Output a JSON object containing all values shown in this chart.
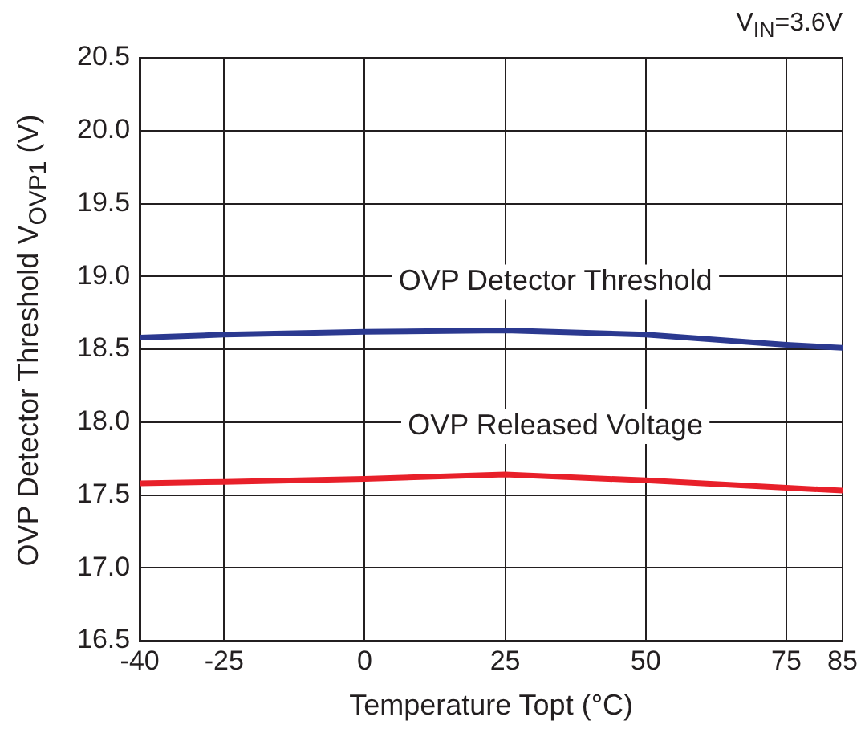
{
  "chart_data": {
    "type": "line",
    "ylabel": "OVP Detector Threshold V$_{OVP1}$ (V)",
    "xlabel": "Temperature Topt (°C)",
    "annotations": [
      "V$_{IN}$=3.6V"
    ],
    "x": [
      -40,
      -25,
      0,
      25,
      50,
      75,
      85
    ],
    "series": [
      {
        "name": "OVP Detector Threshold",
        "color": "#2b3990",
        "values": [
          18.58,
          18.6,
          18.62,
          18.63,
          18.6,
          18.53,
          18.51
        ]
      },
      {
        "name": "OVP Released Voltage",
        "color": "#e8202a",
        "values": [
          17.58,
          17.59,
          17.61,
          17.64,
          17.6,
          17.55,
          17.53
        ]
      }
    ],
    "xlim": [
      -40,
      85
    ],
    "xticks": [
      -40,
      -25,
      0,
      25,
      50,
      75,
      85
    ],
    "ylim": [
      16.5,
      20.5
    ],
    "yticks": [
      16.5,
      {
        "value": 17,
        "label": "17.0"
      },
      17.5,
      {
        "value": 18,
        "label": "18.0"
      },
      18.5,
      {
        "value": 19,
        "label": "19.0"
      },
      19.5,
      {
        "value": 20,
        "label": "20.0"
      },
      20.5
    ],
    "grid": true,
    "legend": false,
    "marker": "none",
    "line_style": "solid"
  }
}
